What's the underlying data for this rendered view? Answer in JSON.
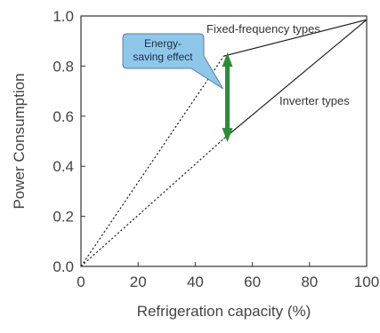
{
  "chart_data": {
    "type": "line",
    "xlabel": "Refrigeration capacity (%)",
    "ylabel": "Power Consumption",
    "xlim": [
      0,
      100
    ],
    "ylim": [
      0,
      1.0
    ],
    "x_ticks": [
      "0",
      "20",
      "40",
      "60",
      "80",
      "100"
    ],
    "y_ticks": [
      "0.0",
      "0.2",
      "0.4",
      "0.6",
      "0.8",
      "1.0"
    ],
    "series": [
      {
        "name": "Fixed-frequency types",
        "color": "#222222",
        "segments": [
          {
            "style": "dotted",
            "points": [
              [
                0,
                0
              ],
              [
                50,
                0.84
              ]
            ]
          },
          {
            "style": "solid",
            "points": [
              [
                50,
                0.84
              ],
              [
                100,
                0.985
              ]
            ]
          }
        ]
      },
      {
        "name": "Inverter types",
        "color": "#222222",
        "segments": [
          {
            "style": "dotted",
            "points": [
              [
                0,
                0
              ],
              [
                50,
                0.51
              ]
            ]
          },
          {
            "style": "solid",
            "points": [
              [
                50,
                0.51
              ],
              [
                100,
                0.985
              ]
            ]
          }
        ]
      }
    ],
    "annotation": {
      "label_line1": "Energy-",
      "label_line2": "saving effect",
      "arrow_x": 50,
      "arrow_from": 0.51,
      "arrow_to": 0.84,
      "arrow_color": "#2e8b3a",
      "callout_fill": "#8ec7ea",
      "callout_border": "#5a7fa6"
    },
    "grid": false
  }
}
